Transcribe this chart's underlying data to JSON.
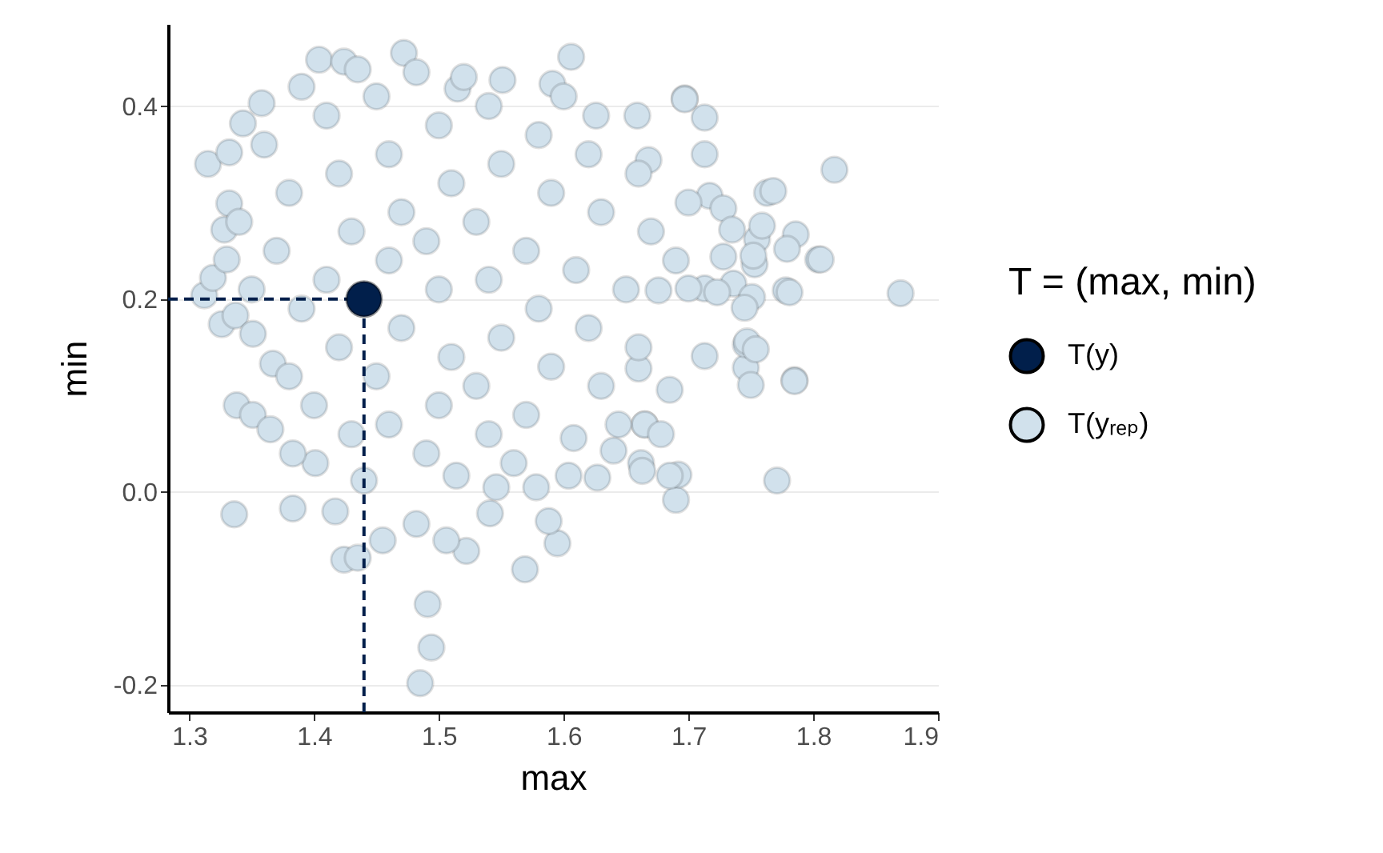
{
  "chart_data": {
    "type": "scatter",
    "xlabel": "max",
    "ylabel": "min",
    "legend_title": "T = (max, min)",
    "xlim": [
      1.283,
      1.9
    ],
    "xticks": [
      1.3,
      1.4,
      1.5,
      1.6,
      1.7,
      1.8,
      1.9
    ],
    "ylim": [
      -0.228,
      0.485
    ],
    "yticks": [
      -0.2,
      {
        "value": 0,
        "label": "0.0"
      },
      0.2,
      0.4
    ],
    "grid": "y",
    "legend": "right",
    "marker": "circle",
    "ref_lines": [
      {
        "axis": "x",
        "value": 1.44,
        "color": "#011f4b",
        "line_style": "dashed"
      },
      {
        "axis": "y",
        "value": 0.2,
        "color": "#011f4b",
        "line_style": "dashed"
      }
    ],
    "series": [
      {
        "name": "T(y)",
        "color": "#011f4b",
        "x": [
          1.44
        ],
        "values": [
          0.2
        ]
      },
      {
        "name": "T(yᵣₑₚ)",
        "color": "#d1e1ec",
        "x": [
          1.87,
          1.817,
          1.804,
          1.778,
          1.785,
          1.771,
          1.763,
          1.755,
          1.753,
          1.746,
          1.746,
          1.728,
          1.713,
          1.69,
          1.692,
          1.697,
          1.676,
          1.662,
          1.665,
          1.569,
          1.595,
          1.588,
          1.491,
          1.494,
          1.485,
          1.455,
          1.424,
          1.435,
          1.336,
          1.383,
          1.417,
          1.522,
          1.506,
          1.482,
          1.541,
          1.685,
          1.663,
          1.627,
          1.604,
          1.578,
          1.546,
          1.514,
          1.44,
          1.401,
          1.383,
          1.338,
          1.351,
          1.365,
          1.665,
          1.644,
          1.64,
          1.678,
          1.608,
          1.75,
          1.785,
          1.685,
          1.66,
          1.713,
          1.315,
          1.332,
          1.343,
          1.358,
          1.404,
          1.424,
          1.435,
          1.472,
          1.482,
          1.312,
          1.326,
          1.337,
          1.351,
          1.319,
          1.33,
          1.332,
          1.328,
          1.367,
          1.606,
          1.697,
          1.713,
          1.713,
          1.768,
          1.717,
          1.728,
          1.759,
          1.786,
          1.779,
          1.806,
          1.752,
          1.735,
          1.781,
          1.736,
          1.723,
          1.751,
          1.745,
          1.747,
          1.754,
          1.7,
          1.515,
          1.551,
          1.591,
          1.626,
          1.659,
          1.668,
          1.36,
          1.38,
          1.37,
          1.39,
          1.38,
          1.41,
          1.42,
          1.43,
          1.41,
          1.42,
          1.4,
          1.45,
          1.46,
          1.47,
          1.46,
          1.47,
          1.45,
          1.46,
          1.5,
          1.51,
          1.49,
          1.5,
          1.51,
          1.5,
          1.49,
          1.54,
          1.55,
          1.53,
          1.54,
          1.55,
          1.53,
          1.54,
          1.58,
          1.59,
          1.57,
          1.58,
          1.59,
          1.57,
          1.62,
          1.63,
          1.61,
          1.62,
          1.63,
          1.66,
          1.67,
          1.65,
          1.66,
          1.35,
          1.34,
          1.39,
          1.52,
          1.6,
          1.69,
          1.7,
          1.43,
          1.56
        ],
        "values": [
          0.206,
          0.334,
          0.241,
          0.209,
          0.116,
          0.012,
          0.31,
          0.262,
          0.236,
          0.129,
          0.153,
          0.244,
          0.211,
          -0.008,
          0.018,
          0.408,
          0.209,
          0.03,
          0.07,
          -0.08,
          -0.053,
          -0.03,
          -0.116,
          -0.161,
          -0.198,
          -0.05,
          -0.07,
          -0.068,
          -0.023,
          -0.017,
          -0.02,
          -0.061,
          -0.05,
          -0.033,
          -0.022,
          0.017,
          0.022,
          0.015,
          0.017,
          0.005,
          0.005,
          0.017,
          0.012,
          0.03,
          0.04,
          0.09,
          0.08,
          0.065,
          0.07,
          0.07,
          0.043,
          0.06,
          0.056,
          0.111,
          0.115,
          0.106,
          0.128,
          0.141,
          0.34,
          0.352,
          0.382,
          0.403,
          0.448,
          0.446,
          0.438,
          0.455,
          0.435,
          0.204,
          0.174,
          0.183,
          0.164,
          0.222,
          0.241,
          0.299,
          0.272,
          0.133,
          0.451,
          0.407,
          0.388,
          0.35,
          0.312,
          0.307,
          0.294,
          0.276,
          0.267,
          0.252,
          0.241,
          0.245,
          0.272,
          0.207,
          0.216,
          0.207,
          0.202,
          0.191,
          0.156,
          0.148,
          0.211,
          0.418,
          0.427,
          0.423,
          0.39,
          0.39,
          0.344,
          0.36,
          0.31,
          0.25,
          0.19,
          0.12,
          0.39,
          0.33,
          0.27,
          0.22,
          0.15,
          0.09,
          0.41,
          0.35,
          0.29,
          0.24,
          0.17,
          0.12,
          0.07,
          0.38,
          0.32,
          0.26,
          0.21,
          0.14,
          0.09,
          0.04,
          0.4,
          0.34,
          0.28,
          0.22,
          0.16,
          0.11,
          0.06,
          0.37,
          0.31,
          0.25,
          0.19,
          0.13,
          0.08,
          0.35,
          0.29,
          0.23,
          0.17,
          0.11,
          0.33,
          0.27,
          0.21,
          0.15,
          0.21,
          0.28,
          0.42,
          0.43,
          0.41,
          0.24,
          0.3,
          0.06,
          0.03
        ]
      }
    ]
  }
}
